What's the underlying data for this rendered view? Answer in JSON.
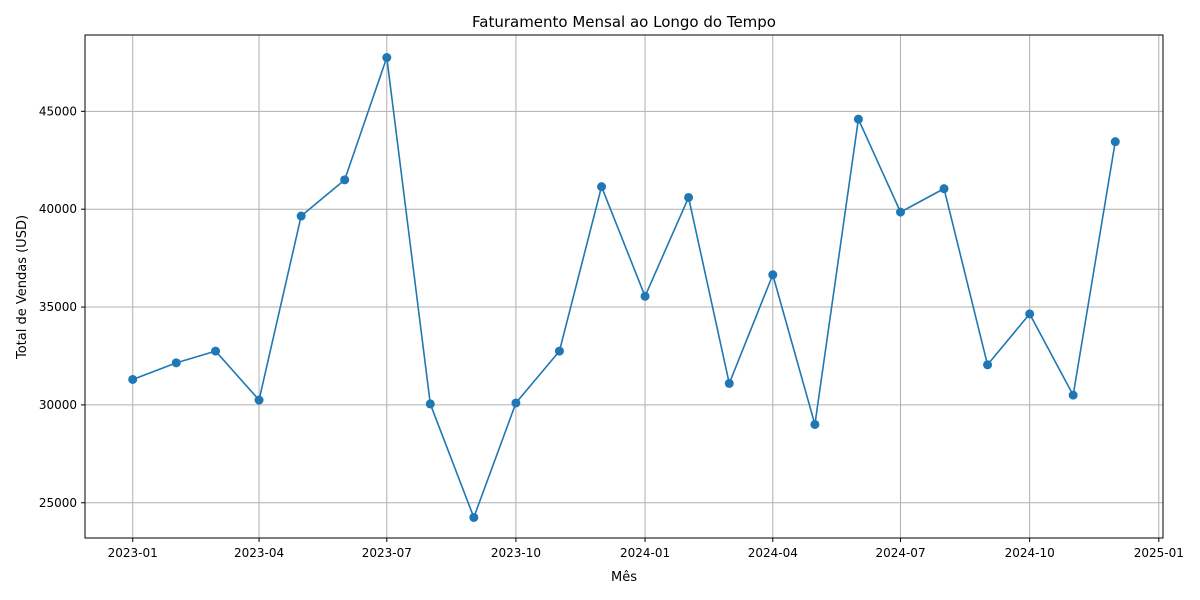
{
  "chart_data": {
    "type": "line",
    "title": "Faturamento Mensal ao Longo do Tempo",
    "xlabel": "Mês",
    "ylabel": "Total de Vendas (USD)",
    "grid": true,
    "line_color": "#1f77b4",
    "x": [
      "2023-01-01",
      "2023-02-01",
      "2023-03-01",
      "2023-04-01",
      "2023-05-01",
      "2023-06-01",
      "2023-07-01",
      "2023-08-01",
      "2023-09-01",
      "2023-10-01",
      "2023-11-01",
      "2023-12-01",
      "2024-01-01",
      "2024-02-01",
      "2024-03-01",
      "2024-04-01",
      "2024-05-01",
      "2024-06-01",
      "2024-07-01",
      "2024-08-01",
      "2024-09-01",
      "2024-10-01",
      "2024-11-01",
      "2024-12-01"
    ],
    "series": [
      {
        "values": [
          31300,
          32150,
          32750,
          30250,
          39650,
          41500,
          47750,
          30050,
          24250,
          30100,
          32750,
          41150,
          35550,
          40600,
          31100,
          36650,
          29000,
          44600,
          39850,
          41050,
          32050,
          34650,
          30500,
          43450
        ]
      }
    ],
    "xlim": [
      "2022-11-28",
      "2025-01-04"
    ],
    "ylim": [
      23200,
      48900
    ],
    "xticks": [
      "2023-01-01",
      "2023-04-01",
      "2023-07-01",
      "2023-10-01",
      "2024-01-01",
      "2024-04-01",
      "2024-07-01",
      "2024-10-01",
      "2025-01-01"
    ],
    "xtick_labels": [
      "2023-01",
      "2023-04",
      "2023-07",
      "2023-10",
      "2024-01",
      "2024-04",
      "2024-07",
      "2024-10",
      "2025-01"
    ],
    "yticks": [
      25000,
      30000,
      35000,
      40000,
      45000
    ],
    "ytick_labels": [
      "25000",
      "30000",
      "35000",
      "40000",
      "45000"
    ]
  }
}
